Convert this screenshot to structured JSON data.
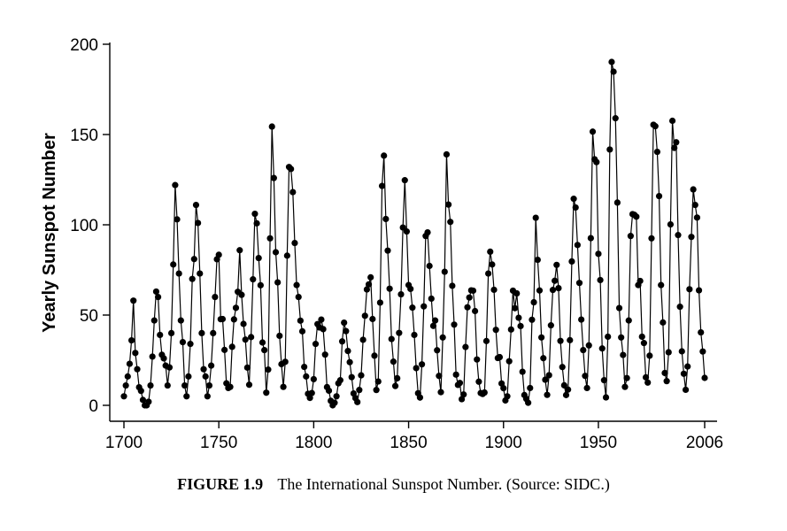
{
  "chart_data": {
    "type": "line",
    "title": "",
    "xlabel": "",
    "ylabel": "Yearly Sunspot Number",
    "xlim": [
      1700,
      2006
    ],
    "ylim": [
      0,
      200
    ],
    "x_ticks": [
      1700,
      1750,
      1800,
      1850,
      1900,
      1950,
      2006
    ],
    "y_ticks": [
      0,
      50,
      100,
      150,
      200
    ],
    "grid": false,
    "legend": "none",
    "series": [
      {
        "x": [
          1700,
          1701,
          1702,
          1703,
          1704,
          1705,
          1706,
          1707,
          1708,
          1709,
          1710,
          1711,
          1712,
          1713,
          1714,
          1715,
          1716,
          1717,
          1718,
          1719,
          1720,
          1721,
          1722,
          1723,
          1724,
          1725,
          1726,
          1727,
          1728,
          1729,
          1730,
          1731,
          1732,
          1733,
          1734,
          1735,
          1736,
          1737,
          1738,
          1739,
          1740,
          1741,
          1742,
          1743,
          1744,
          1745,
          1746,
          1747,
          1748,
          1749,
          1750,
          1751,
          1752,
          1753,
          1754,
          1755,
          1756,
          1757,
          1758,
          1759,
          1760,
          1761,
          1762,
          1763,
          1764,
          1765,
          1766,
          1767,
          1768,
          1769,
          1770,
          1771,
          1772,
          1773,
          1774,
          1775,
          1776,
          1777,
          1778,
          1779,
          1780,
          1781,
          1782,
          1783,
          1784,
          1785,
          1786,
          1787,
          1788,
          1789,
          1790,
          1791,
          1792,
          1793,
          1794,
          1795,
          1796,
          1797,
          1798,
          1799,
          1800,
          1801,
          1802,
          1803,
          1804,
          1805,
          1806,
          1807,
          1808,
          1809,
          1810,
          1811,
          1812,
          1813,
          1814,
          1815,
          1816,
          1817,
          1818,
          1819,
          1820,
          1821,
          1822,
          1823,
          1824,
          1825,
          1826,
          1827,
          1828,
          1829,
          1830,
          1831,
          1832,
          1833,
          1834,
          1835,
          1836,
          1837,
          1838,
          1839,
          1840,
          1841,
          1842,
          1843,
          1844,
          1845,
          1846,
          1847,
          1848,
          1849,
          1850,
          1851,
          1852,
          1853,
          1854,
          1855,
          1856,
          1857,
          1858,
          1859,
          1860,
          1861,
          1862,
          1863,
          1864,
          1865,
          1866,
          1867,
          1868,
          1869,
          1870,
          1871,
          1872,
          1873,
          1874,
          1875,
          1876,
          1877,
          1878,
          1879,
          1880,
          1881,
          1882,
          1883,
          1884,
          1885,
          1886,
          1887,
          1888,
          1889,
          1890,
          1891,
          1892,
          1893,
          1894,
          1895,
          1896,
          1897,
          1898,
          1899,
          1900,
          1901,
          1902,
          1903,
          1904,
          1905,
          1906,
          1907,
          1908,
          1909,
          1910,
          1911,
          1912,
          1913,
          1914,
          1915,
          1916,
          1917,
          1918,
          1919,
          1920,
          1921,
          1922,
          1923,
          1924,
          1925,
          1926,
          1927,
          1928,
          1929,
          1930,
          1931,
          1932,
          1933,
          1934,
          1935,
          1936,
          1937,
          1938,
          1939,
          1940,
          1941,
          1942,
          1943,
          1944,
          1945,
          1946,
          1947,
          1948,
          1949,
          1950,
          1951,
          1952,
          1953,
          1954,
          1955,
          1956,
          1957,
          1958,
          1959,
          1960,
          1961,
          1962,
          1963,
          1964,
          1965,
          1966,
          1967,
          1968,
          1969,
          1970,
          1971,
          1972,
          1973,
          1974,
          1975,
          1976,
          1977,
          1978,
          1979,
          1980,
          1981,
          1982,
          1983,
          1984,
          1985,
          1986,
          1987,
          1988,
          1989,
          1990,
          1991,
          1992,
          1993,
          1994,
          1995,
          1996,
          1997,
          1998,
          1999,
          2000,
          2001,
          2002,
          2003,
          2004,
          2005,
          2006
        ],
        "y": [
          5,
          11,
          16,
          23,
          36,
          58,
          29,
          20,
          10,
          8,
          3,
          0,
          0,
          2,
          11,
          27,
          47,
          63,
          60,
          39,
          28,
          26,
          22,
          11,
          21,
          40,
          78,
          122,
          103,
          73,
          47,
          35,
          11,
          5,
          16,
          34,
          70,
          81,
          111,
          101,
          73,
          40,
          20,
          16,
          5,
          11,
          22,
          40,
          60,
          80.9,
          83.4,
          47.7,
          47.8,
          30.7,
          12.2,
          9.6,
          10.2,
          32.4,
          47.6,
          54,
          62.9,
          85.9,
          61.2,
          45.1,
          36.4,
          20.9,
          11.4,
          37.8,
          69.8,
          106.1,
          100.8,
          81.6,
          66.5,
          34.8,
          30.6,
          7,
          19.8,
          92.5,
          154.4,
          125.9,
          84.8,
          68.1,
          38.5,
          22.8,
          10.2,
          24.1,
          82.9,
          132,
          130.9,
          118.1,
          89.9,
          66.6,
          60,
          46.9,
          41,
          21.3,
          16,
          6.4,
          4.1,
          6.8,
          14.5,
          34,
          45,
          43.1,
          47.5,
          42.2,
          28.1,
          10.1,
          8.1,
          2.5,
          0,
          1.4,
          5,
          12.2,
          13.9,
          35.4,
          45.8,
          41.1,
          30.1,
          23.9,
          15.6,
          6.6,
          4,
          1.8,
          8.5,
          16.6,
          36.3,
          49.6,
          64.2,
          67,
          70.9,
          47.8,
          27.5,
          8.5,
          13.2,
          56.9,
          121.5,
          138.3,
          103.2,
          85.7,
          64.6,
          36.7,
          24.2,
          10.7,
          15,
          40.1,
          61.5,
          98.5,
          124.7,
          96.3,
          66.6,
          64.5,
          54.1,
          39,
          20.6,
          6.7,
          4.3,
          22.7,
          54.8,
          93.8,
          95.8,
          77.2,
          59.1,
          44,
          47,
          30.5,
          16.3,
          7.3,
          37.6,
          74,
          139,
          111.2,
          101.6,
          66.2,
          44.7,
          17,
          11.3,
          12.4,
          3.4,
          6,
          32.3,
          54.3,
          59.7,
          63.7,
          63.5,
          52.2,
          25.4,
          13.1,
          6.8,
          6.3,
          7.1,
          35.6,
          73,
          85.1,
          78,
          64,
          41.8,
          26.2,
          26.7,
          12.1,
          9.5,
          2.7,
          5,
          24.4,
          42,
          63.5,
          53.8,
          62,
          48.5,
          43.9,
          18.6,
          5.7,
          3.6,
          1.4,
          9.6,
          47.4,
          57.1,
          103.9,
          80.6,
          63.6,
          37.6,
          26.1,
          14.2,
          5.8,
          16.7,
          44.3,
          63.9,
          69,
          77.8,
          64.9,
          35.7,
          21.2,
          11.1,
          5.7,
          8.7,
          36.1,
          79.7,
          114.4,
          109.6,
          88.8,
          67.8,
          47.5,
          30.6,
          16.3,
          9.6,
          33.2,
          92.6,
          151.6,
          136.3,
          134.7,
          83.9,
          69.4,
          31.5,
          13.9,
          4.4,
          38,
          141.7,
          190.2,
          184.8,
          159,
          112.3,
          53.9,
          37.6,
          27.9,
          10.2,
          15.1,
          47,
          93.8,
          105.9,
          105.5,
          104.5,
          66.6,
          68.9,
          38,
          34.5,
          15.5,
          12.6,
          27.5,
          92.5,
          155.4,
          154.6,
          140.4,
          115.9,
          66.6,
          45.9,
          17.9,
          13.4,
          29.4,
          100.2,
          157.6,
          142.6,
          145.7,
          94.3,
          54.6,
          29.9,
          17.5,
          8.6,
          21.5,
          64.3,
          93.3,
          119.6,
          111,
          104,
          63.7,
          40.4,
          29.8,
          15.2
        ]
      }
    ]
  },
  "caption": {
    "label": "FIGURE 1.9",
    "text": "The International Sunspot Number. (Source: SIDC.)"
  }
}
